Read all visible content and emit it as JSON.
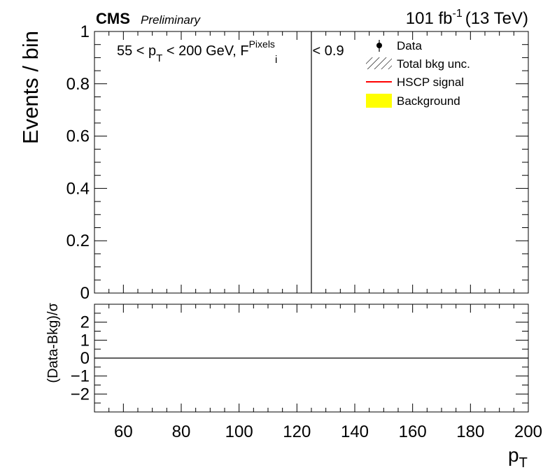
{
  "header": {
    "experiment": "CMS",
    "status": "Preliminary",
    "lumi_value": "101 fb",
    "lumi_exp": "-1",
    "energy": "(13 TeV)"
  },
  "selection": {
    "prefix": "55 < p",
    "sub_T": "T",
    "middle": " < 200 GeV, F",
    "sup": "Pixels",
    "sub_i": "i",
    "suffix": " < 0.9"
  },
  "legend": [
    {
      "label": "Data",
      "style": "marker"
    },
    {
      "label": "Total bkg unc.",
      "style": "hatch"
    },
    {
      "label": "HSCP signal",
      "style": "line",
      "color": "#ff0000"
    },
    {
      "label": "Background",
      "style": "fill",
      "color": "#ffff00"
    }
  ],
  "chart_data": [
    {
      "type": "line",
      "ylabel": "Events / bin",
      "xlim": [
        50,
        200
      ],
      "ylim": [
        0,
        1
      ],
      "y_ticks": [
        "0",
        "0.2",
        "0.4",
        "0.6",
        "0.8",
        "1"
      ],
      "y_tick_values": [
        0,
        0.2,
        0.4,
        0.6,
        0.8,
        1.0
      ],
      "vertical_line_x": 125,
      "series": []
    },
    {
      "type": "line",
      "ylabel": "(Data-Bkg)/σ",
      "xlabel_main": "p",
      "xlabel_sub": "T",
      "xlim": [
        50,
        200
      ],
      "ylim": [
        -3,
        3
      ],
      "y_ticks": [
        "−2",
        "−1",
        "0",
        "1",
        "2"
      ],
      "y_tick_values": [
        -2,
        -1,
        0,
        1,
        2
      ],
      "x_ticks": [
        "60",
        "80",
        "100",
        "120",
        "140",
        "160",
        "180",
        "200"
      ],
      "x_tick_values": [
        60,
        80,
        100,
        120,
        140,
        160,
        180,
        200
      ],
      "reference_line_y": 0,
      "series": []
    }
  ]
}
